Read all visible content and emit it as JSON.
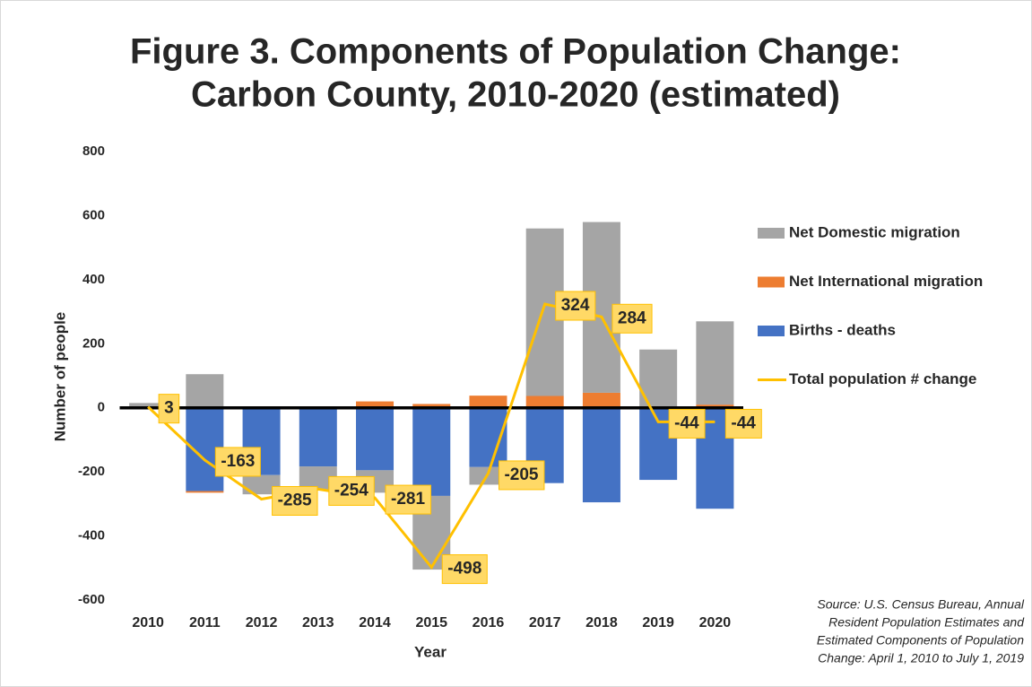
{
  "chart_data": {
    "type": "stacked_bar_line",
    "title": [
      "Figure 3. Components of Population Change:",
      "Carbon County, 2010-2020 (estimated)"
    ],
    "x_label": "Year",
    "y_label": "Number of people",
    "categories": [
      "2010",
      "2011",
      "2012",
      "2013",
      "2014",
      "2015",
      "2016",
      "2017",
      "2018",
      "2019",
      "2020"
    ],
    "series": [
      {
        "name": "Births - deaths",
        "color": "#4472c4",
        "kind": "bar",
        "values": [
          -5,
          -260,
          -210,
          -183,
          -195,
          -275,
          -185,
          -235,
          -295,
          -225,
          -315
        ]
      },
      {
        "name": "Net International migration",
        "color": "#ed7d31",
        "kind": "bar",
        "values": [
          0,
          -5,
          0,
          0,
          20,
          12,
          38,
          37,
          47,
          0,
          10
        ]
      },
      {
        "name": "Net Domestic migration",
        "color": "#a5a5a5",
        "kind": "bar",
        "values": [
          15,
          105,
          -60,
          -75,
          -70,
          -230,
          -55,
          523,
          533,
          182,
          260
        ]
      },
      {
        "name": "Total population # change",
        "color": "#ffc000",
        "kind": "line",
        "values": [
          3,
          -163,
          -285,
          -254,
          -281,
          -498,
          -205,
          324,
          284,
          -44,
          -44
        ]
      }
    ],
    "ylim": [
      -600,
      800
    ],
    "yticks": [
      -600,
      -400,
      -200,
      0,
      200,
      400,
      600,
      800
    ],
    "legend": "right",
    "source": [
      "Source: U.S. Census Bureau, Annual",
      "Resident Population Estimates and",
      "Estimated Components of Population",
      "Change: April 1, 2010 to July 1, 2019"
    ]
  }
}
